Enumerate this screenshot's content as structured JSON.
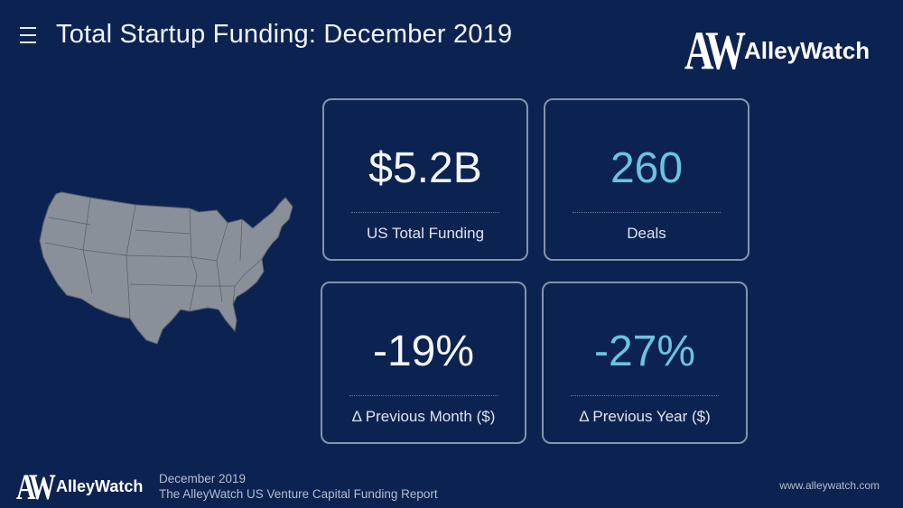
{
  "header": {
    "title": "Total Startup Funding: December 2019",
    "menu_icon": "hamburger-icon",
    "logo_text": "AlleyWatch",
    "logo_mark": "AW"
  },
  "cards": [
    {
      "value": "$5.2B",
      "label": "US Total Funding",
      "color": "#f4f6fa"
    },
    {
      "value": "260",
      "label": "Deals",
      "color": "#6cc3e0"
    },
    {
      "value": "-19%",
      "label": "Δ Previous Month ($)",
      "color": "#f4f6fa"
    },
    {
      "value": "-27%",
      "label": "Δ Previous Year ($)",
      "color": "#6cc3e0"
    }
  ],
  "footer": {
    "logo_text": "AlleyWatch",
    "logo_mark": "AW",
    "line1": "December 2019",
    "line2": "The AlleyWatch US Venture Capital Funding Report",
    "url": "www.alleywatch.com"
  },
  "colors": {
    "background": "#0c2352",
    "accent": "#6cc3e0",
    "map": "#8a9099"
  }
}
